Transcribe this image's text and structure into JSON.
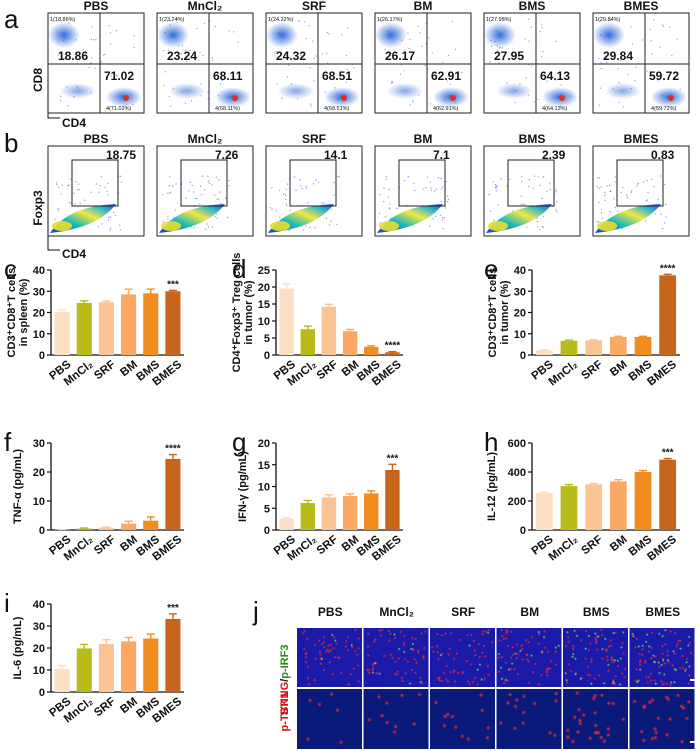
{
  "colors": [
    "#fde0c4",
    "#b8bb1a",
    "#fbc494",
    "#fba865",
    "#f28b20",
    "#c8651d"
  ],
  "groups": [
    "PBS",
    "MnCl2",
    "SRF",
    "BM",
    "BMS",
    "BMES"
  ],
  "group_labels": [
    "PBS",
    "MnCl₂",
    "SRF",
    "BM",
    "BMS",
    "BMES"
  ],
  "panels": {
    "a": {
      "letter": "a",
      "y_axis_label": "CD8",
      "x_axis_label": "CD4",
      "plots": [
        {
          "title": "PBS",
          "q_small": "1(18.86%)",
          "q_main": "18.86",
          "q_main2": "71.02",
          "q_small2": "4(71.02%)"
        },
        {
          "title": "MnCl₂",
          "q_small": "1(23.24%)",
          "q_main": "23.24",
          "q_main2": "68.11",
          "q_small2": "4(68.11%)"
        },
        {
          "title": "SRF",
          "q_small": "1(24.32%)",
          "q_main": "24.32",
          "q_main2": "68.51",
          "q_small2": "4(68.51%)"
        },
        {
          "title": "BM",
          "q_small": "1(26.17%)",
          "q_main": "26.17",
          "q_main2": "62.91",
          "q_small2": "4(62.91%)"
        },
        {
          "title": "BMS",
          "q_small": "1(27.95%)",
          "q_main": "27.95",
          "q_main2": "64.13",
          "q_small2": "4(64.13%)"
        },
        {
          "title": "BMES",
          "q_small": "1(29.84%)",
          "q_main": "29.84",
          "q_main2": "59.72",
          "q_small2": "4(59.72%)"
        }
      ]
    },
    "b": {
      "letter": "b",
      "y_axis_label": "Foxp3",
      "x_axis_label": "CD4",
      "plots": [
        {
          "title": "PBS",
          "gate": "18.75"
        },
        {
          "title": "MnCl₂",
          "gate": "7.26"
        },
        {
          "title": "SRF",
          "gate": "14.1"
        },
        {
          "title": "BM",
          "gate": "7.1"
        },
        {
          "title": "BMS",
          "gate": "2.39"
        },
        {
          "title": "BMES",
          "gate": "0.83"
        }
      ]
    },
    "j": {
      "letter": "j",
      "row1_label_a": "STING",
      "row1_label_sep": "/",
      "row1_label_b": "p-IRF3",
      "row2_label": "p-TBK1",
      "columns": [
        "PBS",
        "MnCl₂",
        "SRF",
        "BM",
        "BMS",
        "BMES"
      ]
    }
  },
  "chart_data": [
    {
      "panel": "c",
      "type": "bar",
      "categories": [
        "PBS",
        "MnCl2",
        "SRF",
        "BM",
        "BMS",
        "BMES"
      ],
      "values": [
        20.2,
        24.5,
        24.8,
        28.5,
        29,
        30
      ],
      "errors": [
        1,
        1,
        0.6,
        2.5,
        2,
        0.4
      ],
      "ylabel": "CD3⁺CD8⁺T cells in spleen (%)",
      "ylim": [
        0,
        40
      ],
      "ticks": [
        0,
        10,
        20,
        30,
        40
      ],
      "significance": "***",
      "sig_index": 5
    },
    {
      "panel": "d",
      "type": "bar",
      "categories": [
        "PBS",
        "MnCl2",
        "SRF",
        "BM",
        "BMS",
        "BMES"
      ],
      "values": [
        19.5,
        7.6,
        14.2,
        7,
        2.4,
        0.8
      ],
      "errors": [
        1.5,
        0.9,
        0.7,
        0.5,
        0.3,
        0.2
      ],
      "ylabel": "CD4⁺Foxp3⁺ Treg cells in tumor (%)",
      "ylim": [
        0,
        25
      ],
      "ticks": [
        0,
        5,
        10,
        15,
        20,
        25
      ],
      "significance": "****",
      "sig_index": 5
    },
    {
      "panel": "e",
      "type": "bar",
      "categories": [
        "PBS",
        "MnCl2",
        "SRF",
        "BM",
        "BMS",
        "BMES"
      ],
      "values": [
        2.3,
        6.7,
        6.9,
        8.5,
        8.5,
        37.5
      ],
      "errors": [
        0.2,
        0.3,
        0.3,
        0.3,
        0.3,
        0.5
      ],
      "ylabel": "CD3⁺CD8⁺T cells in tumor (%)",
      "ylim": [
        0,
        40
      ],
      "ticks": [
        0,
        10,
        20,
        30,
        40
      ],
      "significance": "****",
      "sig_index": 5
    },
    {
      "panel": "f",
      "type": "bar",
      "categories": [
        "PBS",
        "MnCl2",
        "SRF",
        "BM",
        "BMS",
        "BMES"
      ],
      "values": [
        0.1,
        0.5,
        0.8,
        2.2,
        3.2,
        24.5
      ],
      "errors": [
        0.1,
        0.2,
        0.2,
        0.8,
        1.3,
        1.5
      ],
      "ylabel": "TNF-α (pg/mL)",
      "ylim": [
        0,
        30
      ],
      "ticks": [
        0,
        10,
        20,
        30
      ],
      "significance": "****",
      "sig_index": 5
    },
    {
      "panel": "g",
      "type": "bar",
      "categories": [
        "PBS",
        "MnCl2",
        "SRF",
        "BM",
        "BMS",
        "BMES"
      ],
      "values": [
        2.6,
        6.2,
        7.5,
        7.8,
        8.4,
        13.8
      ],
      "errors": [
        0.2,
        0.6,
        0.6,
        0.5,
        0.6,
        1.3
      ],
      "ylabel": "IFN-γ (pg/mL)",
      "ylim": [
        0,
        20
      ],
      "ticks": [
        0,
        5,
        10,
        15,
        20
      ],
      "significance": "***",
      "sig_index": 5
    },
    {
      "panel": "h",
      "type": "bar",
      "categories": [
        "PBS",
        "MnCl2",
        "SRF",
        "BM",
        "BMS",
        "BMES"
      ],
      "values": [
        255,
        303,
        315,
        335,
        400,
        485
      ],
      "errors": [
        5,
        10,
        6,
        12,
        10,
        8
      ],
      "ylabel": "IL-12 (pg/mL)",
      "ylim": [
        0,
        600
      ],
      "ticks": [
        0,
        200,
        400,
        600
      ],
      "significance": "***",
      "sig_index": 5
    },
    {
      "panel": "i",
      "type": "bar",
      "categories": [
        "PBS",
        "MnCl2",
        "SRF",
        "BM",
        "BMS",
        "BMES"
      ],
      "values": [
        10.5,
        19.8,
        21.8,
        23,
        24.3,
        33.2
      ],
      "errors": [
        1.5,
        1.8,
        2,
        1.8,
        2,
        2.3
      ],
      "ylabel": "IL-6 (pg/mL)",
      "ylim": [
        0,
        40
      ],
      "ticks": [
        0,
        10,
        20,
        30,
        40
      ],
      "significance": "***",
      "sig_index": 5
    }
  ]
}
